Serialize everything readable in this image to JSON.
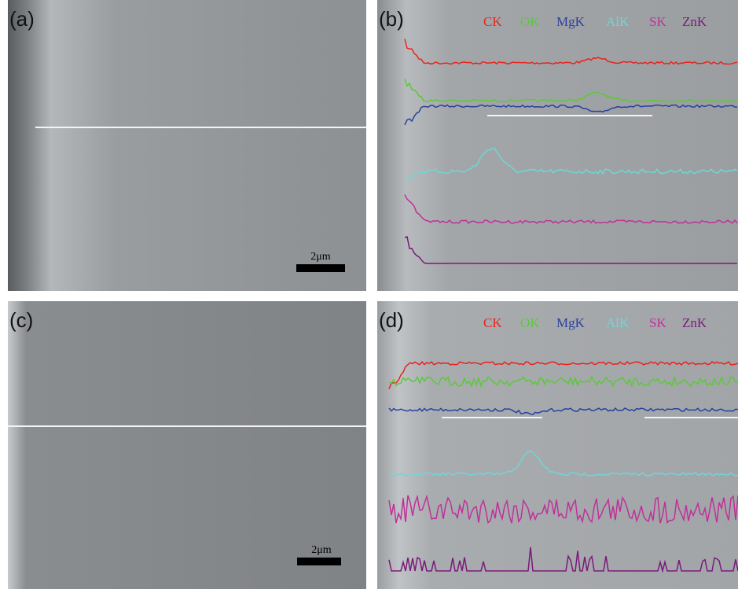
{
  "panels": [
    {
      "label": "(a)",
      "scale_bar": "2μm"
    },
    {
      "label": "(b)",
      "legend": [
        {
          "name": "CK",
          "color": "#e8231f"
        },
        {
          "name": "OK",
          "color": "#5cc83a"
        },
        {
          "name": "MgK",
          "color": "#2a3fa0"
        },
        {
          "name": "AlK",
          "color": "#6fd6d6"
        },
        {
          "name": "SK",
          "color": "#c0309a"
        },
        {
          "name": "ZnK",
          "color": "#7a1a7a"
        }
      ]
    },
    {
      "label": "(c)",
      "scale_bar": "2μm"
    },
    {
      "label": "(d)",
      "legend": [
        {
          "name": "CK",
          "color": "#e8231f"
        },
        {
          "name": "OK",
          "color": "#5cc83a"
        },
        {
          "name": "MgK",
          "color": "#2a3fa0"
        },
        {
          "name": "AlK",
          "color": "#6fd6d6"
        },
        {
          "name": "SK",
          "color": "#c0309a"
        },
        {
          "name": "ZnK",
          "color": "#7a1a7a"
        }
      ]
    }
  ]
}
